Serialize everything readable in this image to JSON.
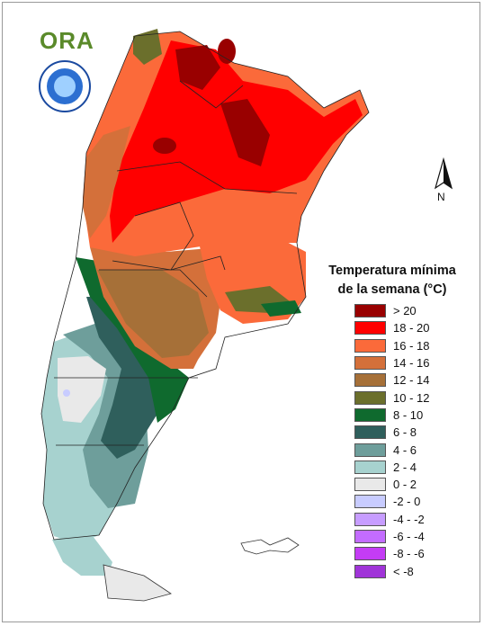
{
  "logo": {
    "text": "ORA"
  },
  "legend": {
    "title_line1": "Temperatura mínima",
    "title_line2": "de la semana (°C)",
    "items": [
      {
        "label": "> 20",
        "color": "#990000"
      },
      {
        "label": "18 - 20",
        "color": "#ff0000"
      },
      {
        "label": "16 - 18",
        "color": "#fb6a3a"
      },
      {
        "label": "14 - 16",
        "color": "#d4703a"
      },
      {
        "label": "12 - 14",
        "color": "#a67038"
      },
      {
        "label": "10 - 12",
        "color": "#6b6f2c"
      },
      {
        "label": "8 - 10",
        "color": "#0f6a2e"
      },
      {
        "label": "6 - 8",
        "color": "#2f5f5c"
      },
      {
        "label": "4 - 6",
        "color": "#6e9e9b"
      },
      {
        "label": "2 - 4",
        "color": "#a7d2cf"
      },
      {
        "label": "0 - 2",
        "color": "#e9e9e9"
      },
      {
        "label": "-2 - 0",
        "color": "#c8ccff"
      },
      {
        "label": "-4 - -2",
        "color": "#c79dff"
      },
      {
        "label": "-6 - -4",
        "color": "#c36cff"
      },
      {
        "label": "-8 - -6",
        "color": "#c43cf5"
      },
      {
        "label": "< -8",
        "color": "#a034d8"
      }
    ]
  },
  "compass": {
    "label": "N"
  }
}
